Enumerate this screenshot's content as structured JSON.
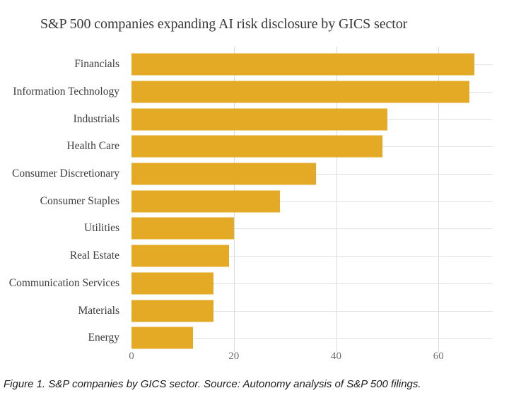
{
  "chart": {
    "title": "S&P 500 companies expanding AI risk disclosure by GICS sector",
    "caption": "Figure 1. S&P companies by GICS sector. Source: Autonomy analysis of S&P 500 filings.",
    "bar_color": "#E5AA25"
  },
  "chart_data": {
    "type": "bar",
    "orientation": "horizontal",
    "title": "S&P 500 companies expanding AI risk disclosure by GICS sector",
    "categories": [
      "Financials",
      "Information Technology",
      "Industrials",
      "Health Care",
      "Consumer Discretionary",
      "Consumer Staples",
      "Utilities",
      "Real Estate",
      "Communication Services",
      "Materials",
      "Energy"
    ],
    "values": [
      67,
      66,
      50,
      49,
      36,
      29,
      20,
      19,
      16,
      16,
      12
    ],
    "xlabel": "",
    "ylabel": "",
    "x_ticks": [
      0,
      20,
      40,
      60
    ],
    "xlim": [
      0,
      70.6
    ],
    "grid": true,
    "legend": false,
    "bar_color": "#E5AA25"
  }
}
